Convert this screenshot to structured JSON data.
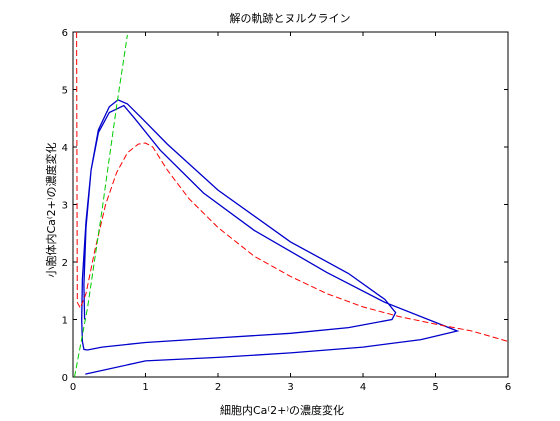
{
  "chart_data": {
    "type": "line",
    "title": "解の軌跡とヌルクライン",
    "xlabel": "細胞内Ca⁽2+⁾の濃度変化",
    "ylabel": "小胞体内Ca⁽2+⁾の濃度変化",
    "xlim": [
      0,
      6
    ],
    "ylim": [
      0,
      6
    ],
    "xticks": [
      "0",
      "1",
      "2",
      "3",
      "4",
      "5",
      "6"
    ],
    "yticks": [
      "0",
      "1",
      "2",
      "3",
      "4",
      "5",
      "6"
    ],
    "grid": false,
    "series": [
      {
        "style": "solid",
        "color": "#0000cc",
        "x": [
          0.17,
          1.0,
          2.0,
          3.0,
          4.0,
          4.8,
          5.3,
          5.0,
          4.3,
          3.5,
          2.5,
          1.8,
          1.2,
          0.85,
          0.7,
          0.5,
          0.35,
          0.25,
          0.18,
          0.13,
          0.12,
          0.13,
          0.15,
          0.2,
          0.4,
          1.0,
          2.0,
          3.0,
          3.8,
          4.4,
          4.45,
          4.3,
          3.8,
          3.0,
          2.0,
          1.3,
          0.95,
          0.75,
          0.62,
          0.5,
          0.35,
          0.25,
          0.18,
          0.15,
          0.16
        ],
        "y": [
          0.05,
          0.28,
          0.34,
          0.42,
          0.52,
          0.65,
          0.8,
          0.95,
          1.3,
          1.82,
          2.55,
          3.2,
          3.95,
          4.5,
          4.72,
          4.6,
          4.25,
          3.6,
          2.7,
          1.7,
          1.0,
          0.62,
          0.48,
          0.47,
          0.52,
          0.6,
          0.68,
          0.76,
          0.86,
          1.0,
          1.12,
          1.35,
          1.8,
          2.35,
          3.25,
          4.05,
          4.5,
          4.75,
          4.82,
          4.7,
          4.3,
          3.6,
          2.6,
          1.6,
          1.0
        ]
      },
      {
        "style": "dashed",
        "color": "#ff0000",
        "x": [
          0.05,
          0.06,
          0.1,
          0.18,
          0.3,
          0.45,
          0.6,
          0.75,
          0.9,
          1.0,
          1.1,
          1.3,
          1.6,
          2.0,
          2.5,
          3.0,
          3.5,
          4.0,
          4.5,
          5.0,
          5.5,
          6.0
        ],
        "y": [
          6.0,
          1.3,
          1.2,
          1.45,
          2.2,
          3.0,
          3.55,
          3.9,
          4.05,
          4.07,
          4.0,
          3.6,
          3.1,
          2.6,
          2.1,
          1.75,
          1.45,
          1.22,
          1.05,
          0.92,
          0.8,
          0.62
        ]
      },
      {
        "style": "dashed",
        "color": "#00cc00",
        "x": [
          0.02,
          0.2,
          0.4,
          0.6,
          0.75
        ],
        "y": [
          0.0,
          1.2,
          2.9,
          4.7,
          5.95
        ]
      }
    ]
  }
}
